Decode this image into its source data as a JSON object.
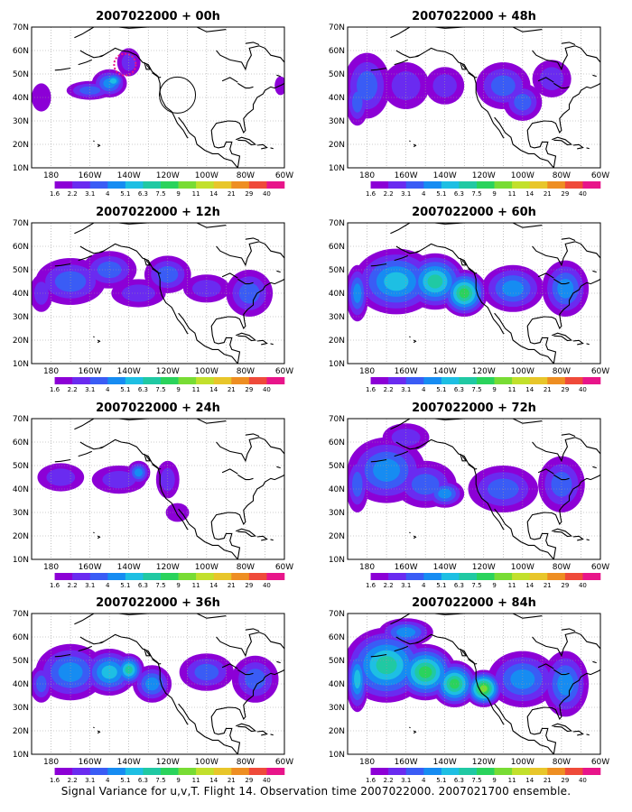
{
  "footer": "Signal Variance for u,v,T. Flight 14. Observation time 2007022000. 2007021700 ensemble.",
  "lon_labels": [
    "180",
    "160W",
    "140W",
    "120W",
    "100W",
    "80W",
    "60W"
  ],
  "lat_labels": [
    "10N",
    "20N",
    "30N",
    "40N",
    "50N",
    "60N",
    "70N"
  ],
  "colorbar": {
    "labels": [
      "1.6",
      "2.2",
      "3.1",
      "4",
      "5.1",
      "6.3",
      "7.5",
      "9",
      "11",
      "14",
      "21",
      "29",
      "40"
    ],
    "colors": [
      "#8c00d6",
      "#6a2bf0",
      "#3a5cf5",
      "#168cf2",
      "#1ebfe3",
      "#20c9a3",
      "#2ad35c",
      "#78dc34",
      "#c2e02c",
      "#e8c62a",
      "#ee8e22",
      "#ef4a3a",
      "#e8158a"
    ]
  },
  "panels": [
    {
      "title": "2007022000 + 00h",
      "level": 0
    },
    {
      "title": "2007022000 + 48h",
      "level": 4
    },
    {
      "title": "2007022000 + 12h",
      "level": 1
    },
    {
      "title": "2007022000 + 60h",
      "level": 5
    },
    {
      "title": "2007022000 + 24h",
      "level": 2
    },
    {
      "title": "2007022000 + 72h",
      "level": 6
    },
    {
      "title": "2007022000 + 36h",
      "level": 3
    },
    {
      "title": "2007022000 + 84h",
      "level": 7
    }
  ]
}
